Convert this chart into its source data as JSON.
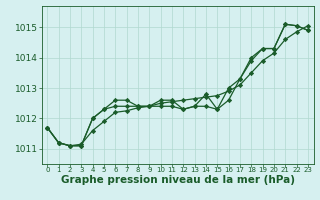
{
  "title": "",
  "xlabel": "Graphe pression niveau de la mer (hPa)",
  "ylabel": "",
  "bg_color": "#d6f0f0",
  "plot_bg_color": "#d6f0f0",
  "grid_color": "#b0d8d0",
  "line_color": "#1a5c2a",
  "ylim": [
    1010.5,
    1015.7
  ],
  "xlim": [
    -0.5,
    23.5
  ],
  "yticks": [
    1011,
    1012,
    1013,
    1014,
    1015
  ],
  "xticks": [
    0,
    1,
    2,
    3,
    4,
    5,
    6,
    7,
    8,
    9,
    10,
    11,
    12,
    13,
    14,
    15,
    16,
    17,
    18,
    19,
    20,
    21,
    22,
    23
  ],
  "series": [
    [
      1011.7,
      1011.2,
      1011.1,
      1011.1,
      1012.0,
      1012.3,
      1012.6,
      1012.6,
      1012.4,
      1012.4,
      1012.6,
      1012.6,
      1012.3,
      1012.4,
      1012.8,
      1012.3,
      1012.6,
      1013.3,
      1013.9,
      1014.3,
      1014.3,
      1015.1,
      1015.05,
      1014.9
    ],
    [
      1011.7,
      1011.2,
      1011.1,
      1011.1,
      1012.0,
      1012.3,
      1012.4,
      1012.4,
      1012.4,
      1012.4,
      1012.4,
      1012.4,
      1012.3,
      1012.4,
      1012.4,
      1012.3,
      1013.0,
      1013.3,
      1014.0,
      1014.3,
      1014.3,
      1015.1,
      1015.05,
      1014.9
    ],
    [
      1011.7,
      1011.2,
      1011.1,
      1011.15,
      1011.6,
      1011.9,
      1012.2,
      1012.25,
      1012.35,
      1012.4,
      1012.5,
      1012.55,
      1012.6,
      1012.65,
      1012.7,
      1012.75,
      1012.9,
      1013.1,
      1013.5,
      1013.9,
      1014.15,
      1014.6,
      1014.85,
      1015.05
    ]
  ],
  "marker": "D",
  "markersize": 2.2,
  "linewidth": 0.9,
  "xlabel_fontsize": 7.5,
  "ytick_fontsize": 6.5,
  "xtick_fontsize": 5.0,
  "xlabel_color": "#1a5c2a"
}
